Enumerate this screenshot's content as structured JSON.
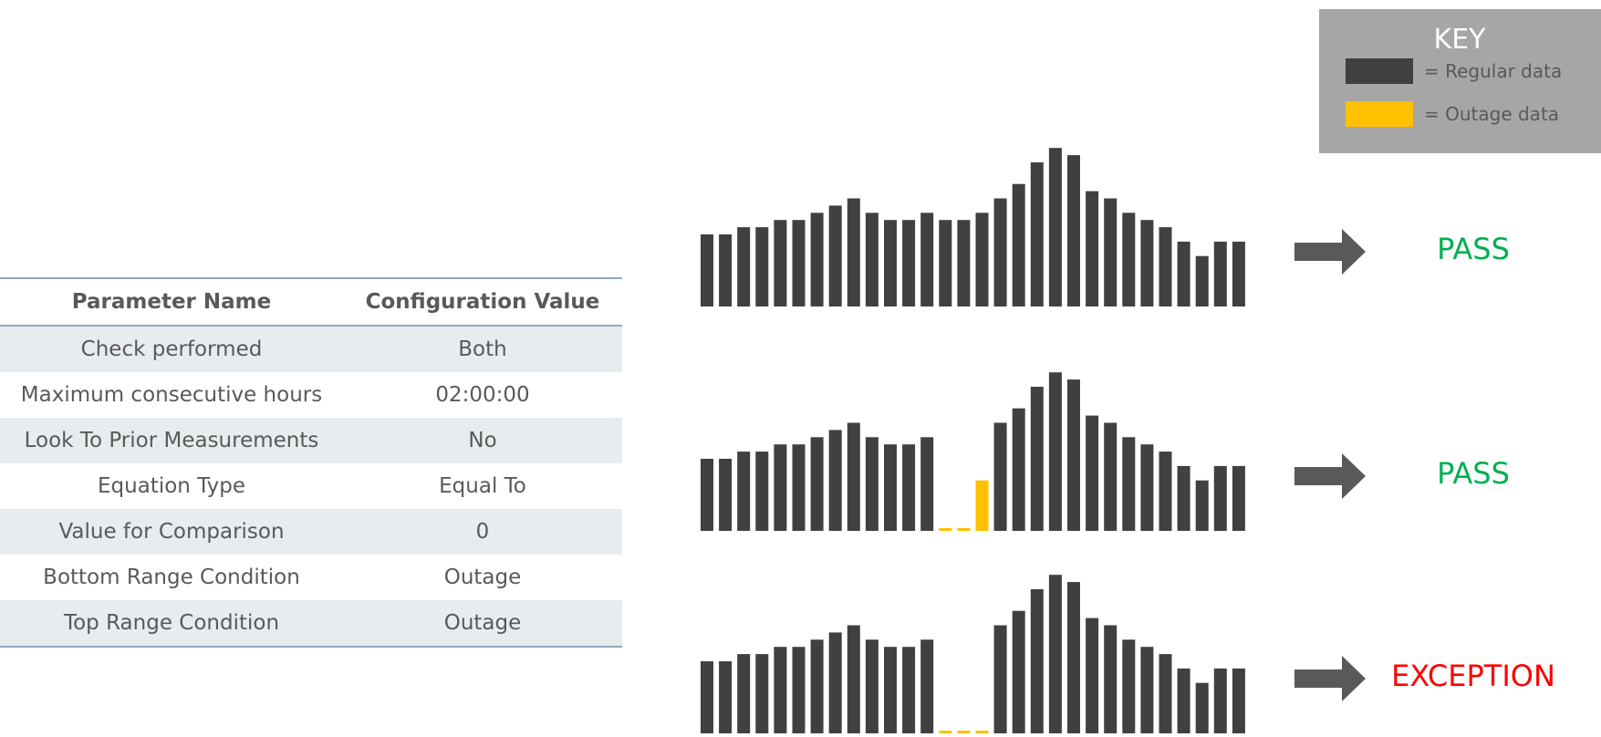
{
  "table": {
    "headers": [
      "Parameter Name",
      "Configuration Value"
    ],
    "rows": [
      [
        "Check performed",
        "Both"
      ],
      [
        "Maximum consecutive hours",
        "02:00:00"
      ],
      [
        "Look To Prior Measurements",
        "No"
      ],
      [
        "Equation Type",
        "Equal To"
      ],
      [
        "Value for Comparison",
        "0"
      ],
      [
        "Bottom Range Condition",
        "Outage"
      ],
      [
        "Top Range Condition",
        "Outage"
      ]
    ]
  },
  "key": {
    "title": "KEY",
    "items": [
      {
        "label": "= Regular data",
        "color": "#404040"
      },
      {
        "label": "= Outage data",
        "color": "#ffc000"
      }
    ]
  },
  "colors": {
    "regular": "#404040",
    "outage": "#ffc000",
    "arrow": "#595959",
    "pass": "#00b050",
    "exception": "#ff0000"
  },
  "chart_data": [
    {
      "type": "bar",
      "regular": [
        10,
        10,
        11,
        11,
        12,
        12,
        13,
        14,
        15,
        13,
        12,
        12,
        13,
        12,
        12,
        13,
        15,
        17,
        20,
        22,
        21,
        16,
        15,
        13,
        12,
        11,
        9,
        7,
        9,
        9
      ],
      "outage": [],
      "result": "PASS"
    },
    {
      "type": "bar",
      "regular": [
        10,
        10,
        11,
        11,
        12,
        12,
        13,
        14,
        15,
        13,
        12,
        12,
        13,
        null,
        null,
        null,
        15,
        17,
        20,
        22,
        21,
        16,
        15,
        13,
        12,
        11,
        9,
        7,
        9,
        9
      ],
      "outage": [
        null,
        null,
        null,
        null,
        null,
        null,
        null,
        null,
        null,
        null,
        null,
        null,
        null,
        0,
        0,
        7,
        null,
        null,
        null,
        null,
        null,
        null,
        null,
        null,
        null,
        null,
        null,
        null,
        null,
        null
      ],
      "result": "PASS"
    },
    {
      "type": "bar",
      "regular": [
        10,
        10,
        11,
        11,
        12,
        12,
        13,
        14,
        15,
        13,
        12,
        12,
        13,
        null,
        null,
        null,
        15,
        17,
        20,
        22,
        21,
        16,
        15,
        13,
        12,
        11,
        9,
        7,
        9,
        9
      ],
      "outage": [
        null,
        null,
        null,
        null,
        null,
        null,
        null,
        null,
        null,
        null,
        null,
        null,
        null,
        0,
        0,
        0,
        null,
        null,
        null,
        null,
        null,
        null,
        null,
        null,
        null,
        null,
        null,
        null,
        null,
        null
      ],
      "result": "EXCEPTION"
    }
  ]
}
